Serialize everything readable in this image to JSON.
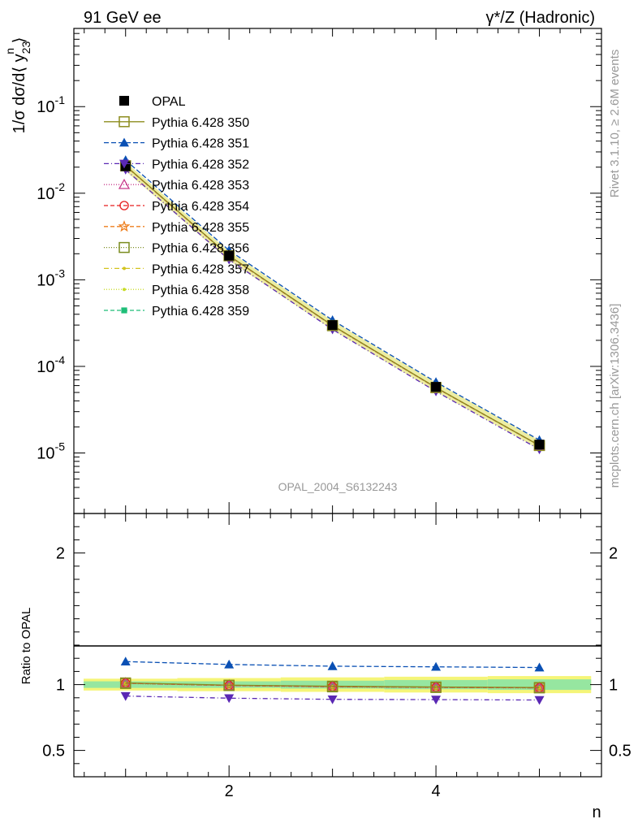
{
  "header": {
    "left": "91 GeV ee",
    "right": "γ*/Z (Hadronic)"
  },
  "side_labels": {
    "top": "Rivet 3.1.10, ≥ 2.6M events",
    "bottom": "mcplots.cern.ch [arXiv:1306.3436]"
  },
  "watermark": "OPAL_2004_S6132243",
  "chart_data": [
    {
      "panel": "main",
      "type": "line",
      "ylabel": "1/σ dσ/d⟨ y_23^n ⟩",
      "yscale": "log",
      "xlim": [
        0.5,
        5.6
      ],
      "ylim": [
        2e-06,
        0.8
      ],
      "ytick_labels": [
        "10^-5",
        "10^-4",
        "10^-3",
        "10^-2",
        "10^-1"
      ],
      "x": [
        1,
        2,
        3,
        4,
        5
      ],
      "legend_position": "upper-left",
      "series": [
        {
          "name": "OPAL",
          "color": "#000000",
          "marker": "square-filled",
          "dash": "none",
          "values": [
            0.0205,
            0.0019,
            0.0003,
            5.8e-05,
            1.25e-05
          ]
        },
        {
          "name": "Pythia 6.428 350",
          "color": "#8c8c1e",
          "marker": "square-open",
          "dash": "solid",
          "values": [
            0.0208,
            0.0019,
            0.000297,
            5.7e-05,
            1.22e-05
          ]
        },
        {
          "name": "Pythia 6.428 351",
          "color": "#0a50b4",
          "marker": "triangle-up-filled",
          "dash": "6,3",
          "values": [
            0.0241,
            0.00219,
            0.000342,
            6.59e-05,
            1.41e-05
          ]
        },
        {
          "name": "Pythia 6.428 352",
          "color": "#5a28b4",
          "marker": "triangle-down-filled",
          "dash": "6,3,1,3",
          "values": [
            0.0187,
            0.00171,
            0.000267,
            5.14e-05,
            1.1e-05
          ]
        },
        {
          "name": "Pythia 6.428 353",
          "color": "#c83c8c",
          "marker": "triangle-up-open",
          "dash": "1,2",
          "values": [
            0.0207,
            0.00189,
            0.000295,
            5.68e-05,
            1.22e-05
          ]
        },
        {
          "name": "Pythia 6.428 354",
          "color": "#e61e1e",
          "marker": "circle-open",
          "dash": "5,3",
          "values": [
            0.0207,
            0.00189,
            0.000296,
            5.68e-05,
            1.22e-05
          ]
        },
        {
          "name": "Pythia 6.428 355",
          "color": "#ee7f1e",
          "marker": "star-open",
          "dash": "5,3",
          "values": [
            0.0207,
            0.00189,
            0.000296,
            5.68e-05,
            1.22e-05
          ]
        },
        {
          "name": "Pythia 6.428 356",
          "color": "#7a8c1e",
          "marker": "square-open",
          "dash": "1,2",
          "values": [
            0.0207,
            0.00189,
            0.000295,
            5.68e-05,
            1.22e-05
          ]
        },
        {
          "name": "Pythia 6.428 357",
          "color": "#d2c31e",
          "marker": "dot",
          "dash": "6,3,1,3",
          "values": [
            0.0207,
            0.00189,
            0.000296,
            5.68e-05,
            1.22e-05
          ]
        },
        {
          "name": "Pythia 6.428 358",
          "color": "#c8dc28",
          "marker": "dot",
          "dash": "1,2",
          "values": [
            0.0207,
            0.00189,
            0.000296,
            5.68e-05,
            1.22e-05
          ]
        },
        {
          "name": "Pythia 6.428 359",
          "color": "#1ebe78",
          "marker": "square-small",
          "dash": "5,3",
          "values": [
            0.0207,
            0.00189,
            0.000296,
            5.68e-05,
            1.22e-05
          ]
        }
      ]
    },
    {
      "panel": "ratio",
      "type": "line",
      "xlabel": "n",
      "ylabel": "Ratio to OPAL",
      "xlim": [
        0.5,
        5.6
      ],
      "ylim": [
        0.3,
        2.3
      ],
      "xtick_labels": [
        "2",
        "4"
      ],
      "ytick_labels": [
        "0.5",
        "1",
        "2"
      ],
      "x": [
        1,
        2,
        3,
        4,
        5
      ],
      "band_outer": {
        "color": "#f5f578",
        "half_width": [
          0.045,
          0.05,
          0.055,
          0.06,
          0.065
        ]
      },
      "band_inner": {
        "color": "#96e6a0",
        "half_width": [
          0.025,
          0.025,
          0.03,
          0.035,
          0.04
        ]
      },
      "series": [
        {
          "name": "Pythia 6.428 350",
          "values": [
            1.013,
            0.996,
            0.988,
            0.982,
            0.978
          ]
        },
        {
          "name": "Pythia 6.428 351",
          "values": [
            1.175,
            1.153,
            1.14,
            1.135,
            1.13
          ]
        },
        {
          "name": "Pythia 6.428 352",
          "values": [
            0.913,
            0.897,
            0.888,
            0.886,
            0.883
          ]
        },
        {
          "name": "Pythia 6.428 353",
          "values": [
            1.01,
            0.993,
            0.983,
            0.979,
            0.975
          ]
        },
        {
          "name": "Pythia 6.428 354",
          "values": [
            1.012,
            0.994,
            0.985,
            0.98,
            0.976
          ]
        },
        {
          "name": "Pythia 6.428 355",
          "values": [
            1.011,
            0.995,
            0.986,
            0.981,
            0.977
          ]
        },
        {
          "name": "Pythia 6.428 356",
          "values": [
            1.009,
            0.993,
            0.983,
            0.978,
            0.975
          ]
        },
        {
          "name": "Pythia 6.428 357",
          "values": [
            1.011,
            0.995,
            0.985,
            0.98,
            0.977
          ]
        },
        {
          "name": "Pythia 6.428 358",
          "values": [
            1.01,
            0.994,
            0.984,
            0.979,
            0.976
          ]
        },
        {
          "name": "Pythia 6.428 359",
          "values": [
            1.011,
            0.994,
            0.985,
            0.98,
            0.976
          ]
        }
      ]
    }
  ]
}
